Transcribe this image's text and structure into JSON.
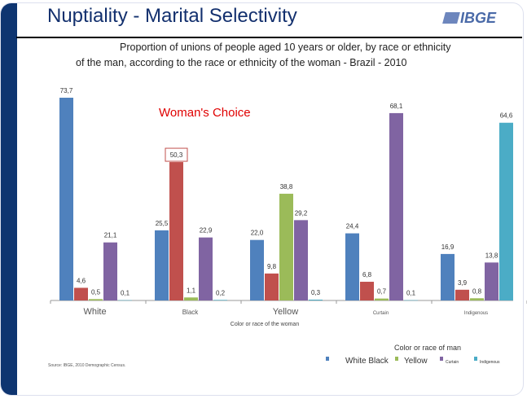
{
  "header": {
    "title": "Nuptiality - Marital Selectivity",
    "logo": "IBGE"
  },
  "chart_data": {
    "type": "bar",
    "title_line1": "Proportion of unions of people aged 10 years or older, by race or ethnicity",
    "title_line2": "of the man, according to the race or ethnicity of the woman - Brazil - 2010",
    "annotation": "Woman's Choice",
    "categories": [
      "White",
      "Black",
      "Yellow",
      "Curtain",
      "Indigenous"
    ],
    "xlabel": "Color or race of the woman",
    "legend_title": "Color or race of man",
    "legend_placement": "bottom-right",
    "ylim": [
      0,
      75
    ],
    "series": [
      {
        "name": "White",
        "color": "#4f81bd",
        "values": [
          73.7,
          25.5,
          22.0,
          24.4,
          16.9
        ],
        "labels": [
          "73,7",
          "25,5",
          "22,0",
          "24,4",
          "16,9"
        ]
      },
      {
        "name": "Black",
        "color": "#c0504d",
        "values": [
          4.6,
          50.3,
          9.8,
          6.8,
          3.9
        ],
        "labels": [
          "4,6",
          "50,3",
          "9,8",
          "6,8",
          "3,9"
        ]
      },
      {
        "name": "Yellow",
        "color": "#9bbb59",
        "values": [
          0.5,
          1.1,
          38.8,
          0.7,
          0.8
        ],
        "labels": [
          "0,5",
          "1,1",
          "38,8",
          "0,7",
          "0,8"
        ]
      },
      {
        "name": "Curtain",
        "color": "#8064a2",
        "values": [
          21.1,
          22.9,
          29.2,
          68.1,
          13.8
        ],
        "labels": [
          "21,1",
          "22,9",
          "29,2",
          "68,1",
          "13,8"
        ]
      },
      {
        "name": "Indigenous",
        "color": "#4bacc6",
        "values": [
          0.1,
          0.2,
          0.3,
          0.1,
          64.6
        ],
        "labels": [
          "0,1",
          "0,2",
          "0,3",
          "0,1",
          "64,6"
        ]
      }
    ],
    "legend_labels": [
      "White Black",
      "Yellow",
      "Curtain",
      "Indigenous"
    ],
    "highlighted_label": "50,3",
    "source": "Source: IBGE, 2010 Demographic Census."
  }
}
